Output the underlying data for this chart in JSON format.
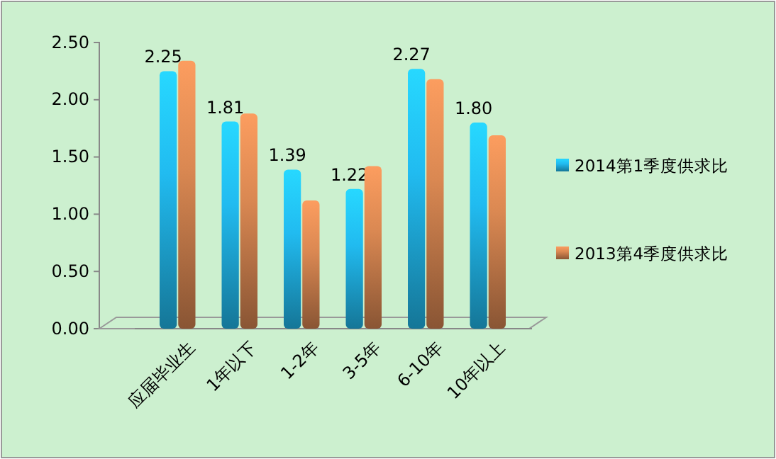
{
  "chart_data": {
    "type": "bar",
    "categories": [
      "应届毕业生",
      "1年以下",
      "1-2年",
      "3-5年",
      "6-10年",
      "10年以上"
    ],
    "series": [
      {
        "name": "2014第1季度供求比",
        "color": "#1ea8d8",
        "values": [
          2.25,
          1.81,
          1.39,
          1.22,
          2.27,
          1.8
        ],
        "value_labels": [
          "2.25",
          "1.81",
          "1.39",
          "1.22",
          "2.27",
          "1.80"
        ]
      },
      {
        "name": "2013第4季度供求比",
        "color": "#c47a4a",
        "values": [
          2.34,
          1.88,
          1.12,
          1.42,
          2.18,
          1.69
        ]
      }
    ],
    "ylim": [
      0,
      2.5
    ],
    "yticks": [
      {
        "value": 0,
        "label": "0.00"
      },
      {
        "value": 0.5,
        "label": "0.50"
      },
      {
        "value": 1,
        "label": "1.00"
      },
      {
        "value": 1.5,
        "label": "1.50"
      },
      {
        "value": 2,
        "label": "2.00"
      },
      {
        "value": 2.5,
        "label": "2.50"
      }
    ],
    "grid": false,
    "legend": "right"
  }
}
